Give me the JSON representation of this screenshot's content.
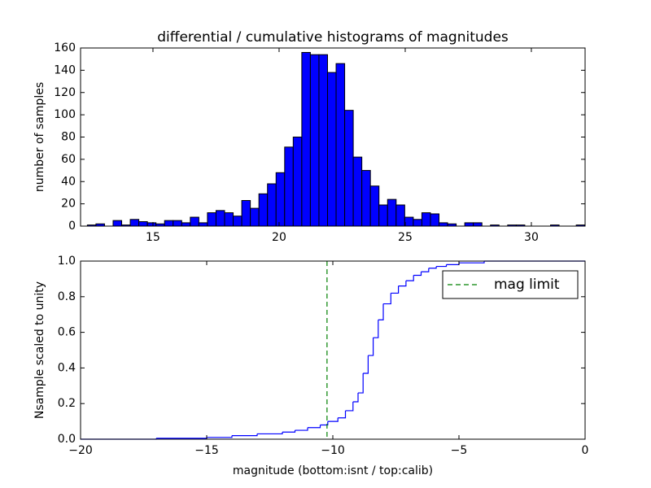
{
  "chart_data": [
    {
      "type": "histogram",
      "title": "differential / cumulative histograms of magnitudes",
      "ylabel": "number of samples",
      "bins": [
        12.4,
        12.74,
        13.08,
        13.42,
        13.76,
        14.1,
        14.44,
        14.78,
        15.12,
        15.46,
        15.8,
        16.14,
        16.48,
        16.82,
        17.16,
        17.5,
        17.84,
        18.18,
        18.52,
        18.86,
        19.2,
        19.54,
        19.88,
        20.22,
        20.56,
        20.9,
        21.24,
        21.58,
        21.92,
        22.26,
        22.6,
        22.94,
        23.28,
        23.62,
        23.96,
        24.3,
        24.64,
        24.98,
        25.32,
        25.66,
        26.0,
        26.34,
        26.68,
        27.02,
        27.36,
        27.7,
        28.04,
        28.38,
        28.72,
        29.06,
        29.4,
        29.74,
        30.08,
        30.42,
        30.76,
        31.1,
        31.44,
        31.78,
        32.12
      ],
      "values": [
        1,
        2,
        0,
        5,
        1,
        6,
        4,
        3,
        2,
        5,
        5,
        3,
        8,
        3,
        12,
        14,
        12,
        9,
        23,
        16,
        29,
        38,
        48,
        71,
        80,
        156,
        154,
        154,
        138,
        146,
        104,
        62,
        50,
        36,
        19,
        24,
        19,
        8,
        6,
        12,
        11,
        3,
        2,
        0,
        3,
        3,
        0,
        1,
        0,
        1,
        1,
        0,
        0,
        0,
        1,
        0,
        0,
        1
      ],
      "color": "#0000ff",
      "xlim": [
        12.13,
        32.13
      ],
      "xticks": [
        15,
        20,
        25,
        30
      ],
      "ylim": [
        0,
        160
      ],
      "yticks": [
        0,
        20,
        40,
        60,
        80,
        100,
        120,
        140,
        160
      ]
    },
    {
      "type": "step",
      "xlabel": "magnitude (bottom:isnt / top:calib)",
      "ylabel": "Nsample scaled to unity",
      "x": [
        -20,
        -17,
        -15,
        -14,
        -13,
        -12,
        -11.5,
        -11,
        -10.5,
        -10.2,
        -9.8,
        -9.5,
        -9.2,
        -9,
        -8.8,
        -8.6,
        -8.4,
        -8.2,
        -8,
        -7.7,
        -7.4,
        -7.1,
        -6.8,
        -6.5,
        -6.2,
        -5.9,
        -5.5,
        -5,
        -4,
        0
      ],
      "series": [
        {
          "color": "#0000ff",
          "values": [
            0,
            0.005,
            0.01,
            0.02,
            0.03,
            0.04,
            0.05,
            0.065,
            0.08,
            0.1,
            0.12,
            0.16,
            0.21,
            0.26,
            0.37,
            0.47,
            0.57,
            0.67,
            0.76,
            0.82,
            0.86,
            0.89,
            0.92,
            0.94,
            0.96,
            0.97,
            0.98,
            0.99,
            1.0,
            1.0
          ]
        }
      ],
      "vlines": [
        {
          "name": "mag limit",
          "x": -10.23,
          "color": "#008000",
          "linestyle": "dashed"
        }
      ],
      "legend": "upper right",
      "xlim": [
        -20,
        0
      ],
      "xticks": [
        {
          "value": -20,
          "label": "−20"
        },
        {
          "value": -15,
          "label": "−15"
        },
        {
          "value": -10,
          "label": "−10"
        },
        {
          "value": -5,
          "label": "−5"
        },
        0
      ],
      "ylim": [
        0,
        1
      ],
      "yticks": [
        {
          "value": 0,
          "label": "0.0"
        },
        0.2,
        0.4,
        0.6,
        0.8,
        {
          "value": 1,
          "label": "1.0"
        }
      ]
    }
  ]
}
